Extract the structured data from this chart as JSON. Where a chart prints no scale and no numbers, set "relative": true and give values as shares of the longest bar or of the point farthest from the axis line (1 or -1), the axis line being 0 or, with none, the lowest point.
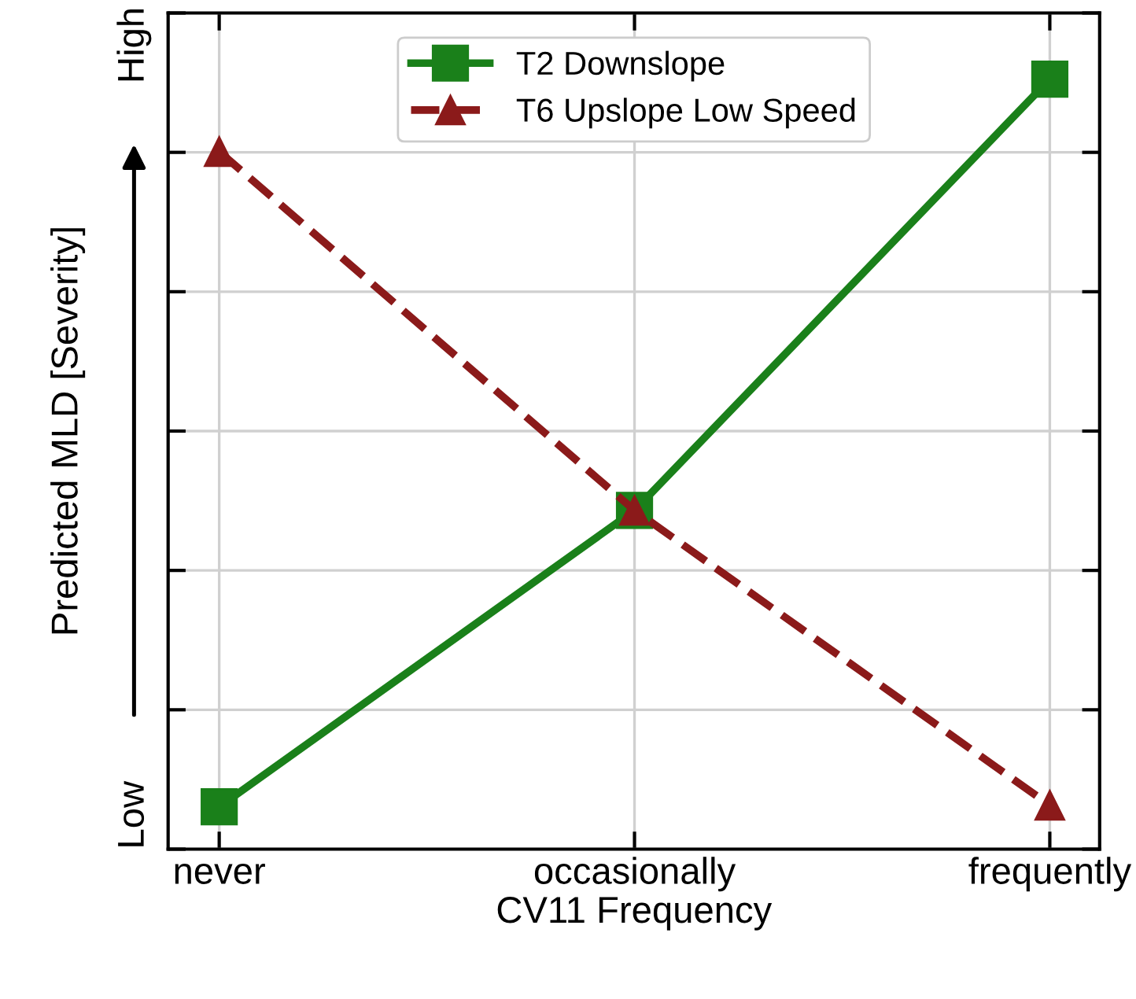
{
  "chart_data": {
    "type": "line",
    "relative": true,
    "xlabel": "CV11 Frequency",
    "ylabel": "Predicted MLD [Severity]",
    "categories": [
      "never",
      "occasionally",
      "frequently"
    ],
    "series": [
      {
        "name": "T2 Downslope",
        "color": "#1a801a",
        "values": [
          0.055,
          0.44,
          1
        ],
        "marker": "square",
        "line_style": "solid"
      },
      {
        "name": "T6 Upslope Low Speed",
        "color": "#8b1a1a",
        "values": [
          0.906,
          0.44,
          0.057
        ],
        "marker": "triangle",
        "line_style": "dashed"
      }
    ],
    "annotations": [
      "Low",
      "High"
    ],
    "grid": true,
    "legend": "top",
    "tick_labels": "x"
  }
}
